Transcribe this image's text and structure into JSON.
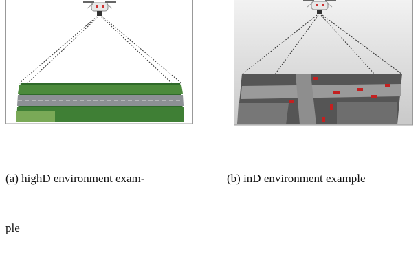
{
  "figures": [
    {
      "caption_lines": [
        "(a) highD environment exam-",
        "ple"
      ]
    },
    {
      "caption_lines": [
        "(b) inD environment example"
      ]
    }
  ]
}
